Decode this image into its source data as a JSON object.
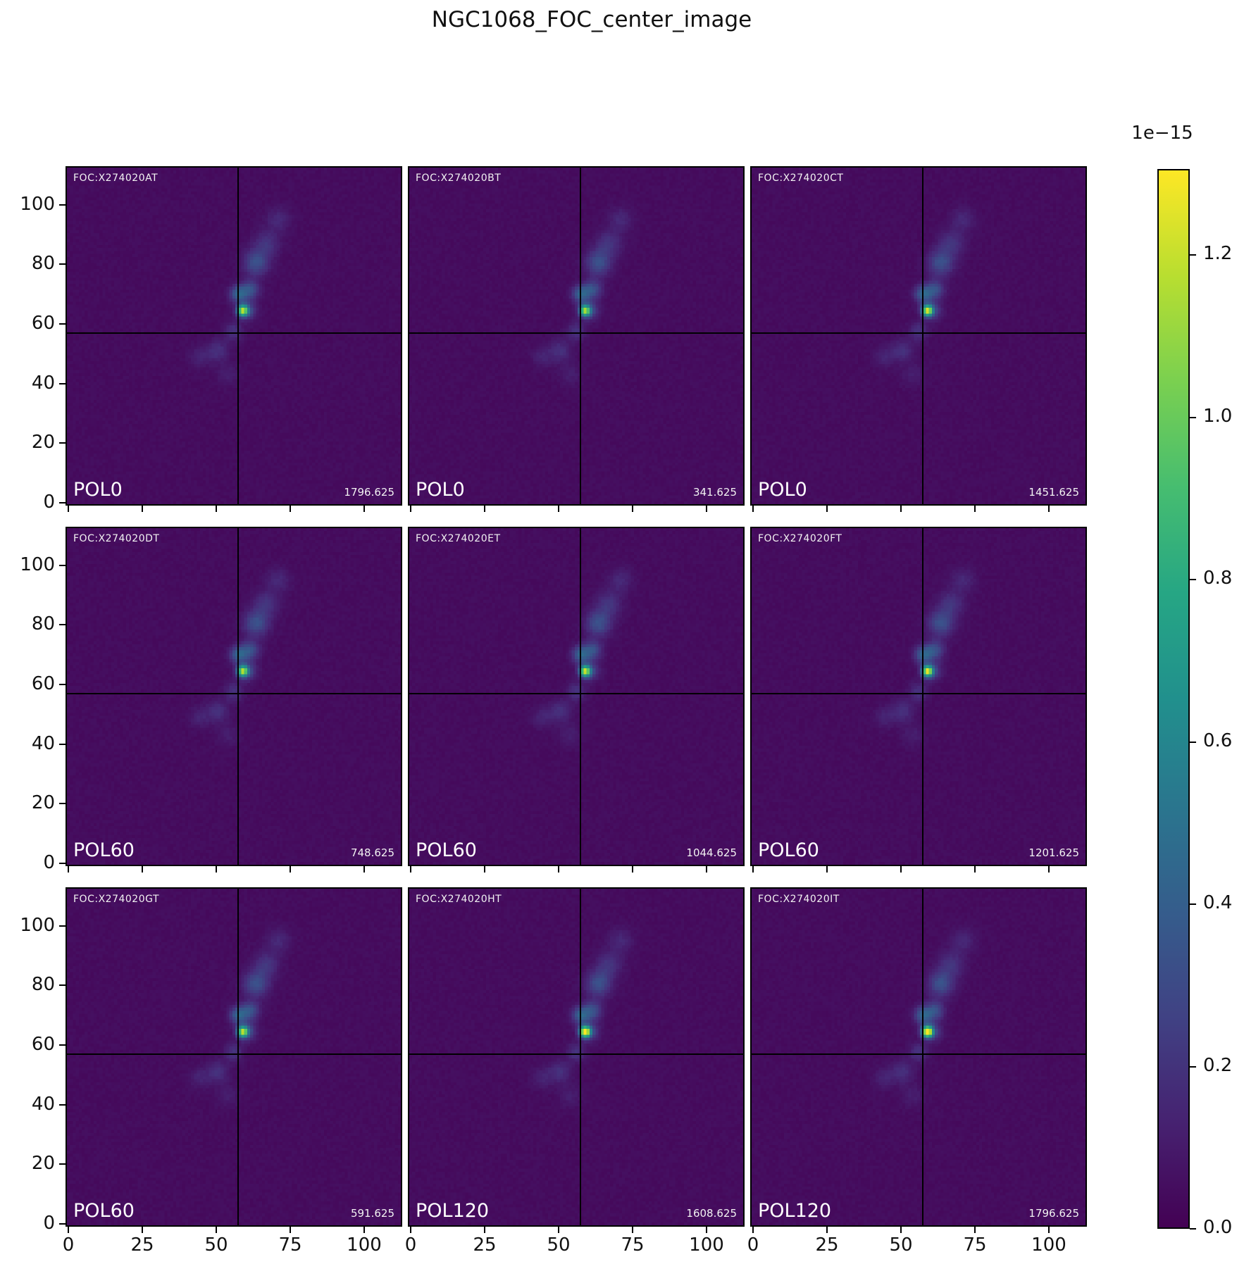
{
  "title": "NGC1068_FOC_center_image",
  "colorbar": {
    "scale_label": "1e−15",
    "tick_labels": [
      "0.0",
      "0.2",
      "0.4",
      "0.6",
      "0.8",
      "1.0",
      "1.2"
    ],
    "vmin": 0.0,
    "vmax": 1.306
  },
  "chart_data": {
    "type": "heatmap",
    "title": "NGC1068_FOC_center_image",
    "colormap": "viridis",
    "value_scale": "1e−15",
    "vmin": 0.0,
    "vmax": 1.306,
    "x_range": [
      -0.5,
      112.5
    ],
    "y_range": [
      -0.5,
      112.5
    ],
    "x_ticks": [
      0,
      25,
      50,
      75,
      100
    ],
    "y_ticks": [
      0,
      20,
      40,
      60,
      80,
      100
    ],
    "crosshair": {
      "x": 57,
      "y": 57
    },
    "grid": {
      "rows": 3,
      "cols": 3
    },
    "panels": [
      {
        "foc_label": "FOC:X274020AT",
        "pol_label": "POL0",
        "exposure": "1796.625",
        "peak": 1.02
      },
      {
        "foc_label": "FOC:X274020BT",
        "pol_label": "POL0",
        "exposure": "341.625",
        "peak": 0.98
      },
      {
        "foc_label": "FOC:X274020CT",
        "pol_label": "POL0",
        "exposure": "1451.625",
        "peak": 1.08
      },
      {
        "foc_label": "FOC:X274020DT",
        "pol_label": "POL60",
        "exposure": "748.625",
        "peak": 1.0
      },
      {
        "foc_label": "FOC:X274020ET",
        "pol_label": "POL60",
        "exposure": "1044.625",
        "peak": 1.05
      },
      {
        "foc_label": "FOC:X274020FT",
        "pol_label": "POL60",
        "exposure": "1201.625",
        "peak": 1.1
      },
      {
        "foc_label": "FOC:X274020GT",
        "pol_label": "POL60",
        "exposure": "591.625",
        "peak": 1.02
      },
      {
        "foc_label": "FOC:X274020HT",
        "pol_label": "POL120",
        "exposure": "1608.625",
        "peak": 1.26
      },
      {
        "foc_label": "FOC:X274020IT",
        "pol_label": "POL120",
        "exposure": "1796.625",
        "peak": 1.3
      }
    ],
    "source": {
      "background": 0.03,
      "core": {
        "x": 59,
        "y": 64.5,
        "sigma": 1.25
      },
      "features": [
        {
          "x": 60.5,
          "y": 64.5,
          "sigma": 2.2,
          "amp": 0.24
        },
        {
          "x": 57.5,
          "y": 70.0,
          "sigma": 2.0,
          "amp": 0.36
        },
        {
          "x": 61.5,
          "y": 71.5,
          "sigma": 2.2,
          "amp": 0.28
        },
        {
          "x": 63.5,
          "y": 80.5,
          "sigma": 3.0,
          "amp": 0.28
        },
        {
          "x": 67.0,
          "y": 87.0,
          "sigma": 3.0,
          "amp": 0.16
        },
        {
          "x": 71.0,
          "y": 95.0,
          "sigma": 2.8,
          "amp": 0.11
        },
        {
          "x": 56.0,
          "y": 57.5,
          "sigma": 2.2,
          "amp": 0.15
        },
        {
          "x": 50.5,
          "y": 51.0,
          "sigma": 2.6,
          "amp": 0.14
        },
        {
          "x": 44.5,
          "y": 49.0,
          "sigma": 2.4,
          "amp": 0.09
        },
        {
          "x": 54.0,
          "y": 43.0,
          "sigma": 2.6,
          "amp": 0.07
        }
      ]
    }
  }
}
